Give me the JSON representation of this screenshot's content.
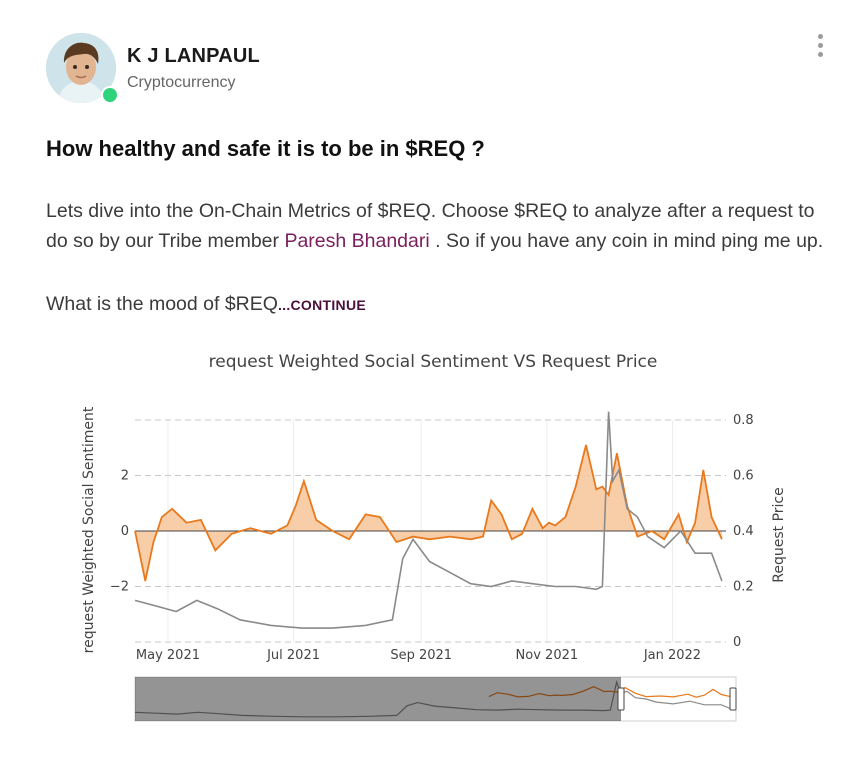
{
  "author": {
    "name": "K J LANPAUL",
    "category": "Cryptocurrency"
  },
  "icons": {
    "avatar": "avatar-icon",
    "menu": "more-vertical-icon",
    "online": "online-status-icon"
  },
  "post": {
    "title": "How healthy and safe it is to be in $REQ ?",
    "body_part1": "Lets dive into the On-Chain Metrics of $REQ. Choose $REQ to analyze after a request to do so by our Tribe member ",
    "mention": "Paresh Bhandari",
    "body_part2": " . So if you have any coin in mind ping me up.",
    "line2": "What is the mood of $REQ",
    "continue_label": "...CONTINUE"
  },
  "chart_data": {
    "type": "area",
    "title": "request Weighted Social Sentiment VS Request Price",
    "ylabel": "request Weighted Social Sentiment",
    "y2label": "Request Price",
    "x_ticks": [
      "May 2021",
      "Jul 2021",
      "Sep 2021",
      "Nov 2021",
      "Jan 2022"
    ],
    "y_ticks": [
      "2",
      "0",
      "−2"
    ],
    "y2_ticks": [
      "0.8",
      "0.6",
      "0.4",
      "0.2",
      "0"
    ],
    "ylim": [
      -4,
      4
    ],
    "y2lim": [
      0,
      0.8
    ],
    "colors": {
      "sentiment": "#e8791d",
      "sentiment_fill": "#f7c9a0",
      "price": "#8a8a8a"
    },
    "series": [
      {
        "id": "sentiment",
        "axis": "left",
        "x": [
          "2021-04-15",
          "2021-04-20",
          "2021-04-24",
          "2021-04-28",
          "2021-05-03",
          "2021-05-10",
          "2021-05-17",
          "2021-05-24",
          "2021-06-01",
          "2021-06-10",
          "2021-06-20",
          "2021-06-28",
          "2021-07-02",
          "2021-07-06",
          "2021-07-12",
          "2021-07-20",
          "2021-07-28",
          "2021-08-05",
          "2021-08-12",
          "2021-08-20",
          "2021-08-28",
          "2021-09-05",
          "2021-09-15",
          "2021-09-25",
          "2021-10-01",
          "2021-10-05",
          "2021-10-10",
          "2021-10-15",
          "2021-10-20",
          "2021-10-25",
          "2021-10-30",
          "2021-11-02",
          "2021-11-05",
          "2021-11-10",
          "2021-11-15",
          "2021-11-20",
          "2021-11-25",
          "2021-11-28",
          "2021-12-01",
          "2021-12-05",
          "2021-12-10",
          "2021-12-15",
          "2021-12-22",
          "2021-12-28",
          "2022-01-04",
          "2022-01-08",
          "2022-01-12",
          "2022-01-16",
          "2022-01-20",
          "2022-01-25"
        ],
        "y": [
          0,
          -1.8,
          -0.4,
          0.5,
          0.8,
          0.3,
          0.4,
          -0.7,
          -0.1,
          0.1,
          -0.1,
          0.2,
          0.9,
          1.8,
          0.4,
          0,
          -0.3,
          0.6,
          0.5,
          -0.4,
          -0.2,
          -0.3,
          -0.2,
          -0.3,
          -0.2,
          1.1,
          0.6,
          -0.3,
          -0.1,
          0.8,
          0.1,
          0.3,
          0.2,
          0.5,
          1.6,
          3.1,
          1.5,
          1.6,
          1.3,
          2.8,
          0.9,
          -0.2,
          0,
          -0.3,
          0.6,
          -0.4,
          0.3,
          2.2,
          0.5,
          -0.3
        ]
      },
      {
        "id": "price",
        "axis": "right",
        "x": [
          "2021-04-15",
          "2021-04-25",
          "2021-05-05",
          "2021-05-15",
          "2021-05-25",
          "2021-06-05",
          "2021-06-20",
          "2021-07-05",
          "2021-07-20",
          "2021-08-05",
          "2021-08-18",
          "2021-08-23",
          "2021-08-28",
          "2021-09-05",
          "2021-09-15",
          "2021-09-25",
          "2021-10-05",
          "2021-10-15",
          "2021-10-25",
          "2021-11-05",
          "2021-11-15",
          "2021-11-25",
          "2021-11-28",
          "2021-12-01",
          "2021-12-03",
          "2021-12-06",
          "2021-12-10",
          "2021-12-15",
          "2021-12-20",
          "2021-12-28",
          "2022-01-05",
          "2022-01-12",
          "2022-01-20",
          "2022-01-25"
        ],
        "y": [
          0.15,
          0.13,
          0.11,
          0.15,
          0.12,
          0.08,
          0.06,
          0.05,
          0.05,
          0.06,
          0.08,
          0.3,
          0.37,
          0.29,
          0.25,
          0.21,
          0.2,
          0.22,
          0.21,
          0.2,
          0.2,
          0.19,
          0.2,
          0.83,
          0.58,
          0.62,
          0.48,
          0.45,
          0.38,
          0.34,
          0.4,
          0.32,
          0.32,
          0.22
        ]
      }
    ]
  }
}
